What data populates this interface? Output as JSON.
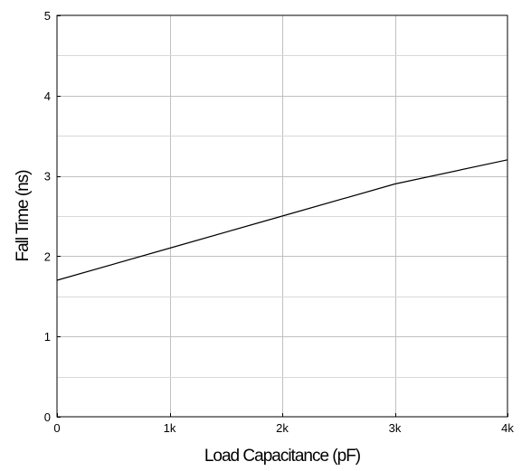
{
  "chart_data": {
    "type": "line",
    "title": "",
    "xlabel": "Load Capacitance (pF)",
    "ylabel": "Fall Time (ns)",
    "xlim": [
      0,
      4000
    ],
    "ylim": [
      0,
      5
    ],
    "x_ticks": [
      0,
      1000,
      2000,
      3000,
      4000
    ],
    "x_tick_labels": [
      "0",
      "1k",
      "2k",
      "3k",
      "4k"
    ],
    "y_ticks": [
      0,
      1,
      2,
      3,
      4,
      5
    ],
    "y_tick_labels": [
      "0",
      "1",
      "2",
      "3",
      "4",
      "5"
    ],
    "y_minor_ticks": [
      0.5,
      1.5,
      2.5,
      3.5,
      4.5
    ],
    "grid": true,
    "legend": "none",
    "series": [
      {
        "x": [
          0,
          1000,
          2000,
          3000,
          4000
        ],
        "y": [
          1.7,
          2.1,
          2.5,
          2.9,
          3.2
        ]
      }
    ],
    "colors": {
      "line": "#000000",
      "grid": "#c0c0c0",
      "frame": "#000000"
    }
  }
}
